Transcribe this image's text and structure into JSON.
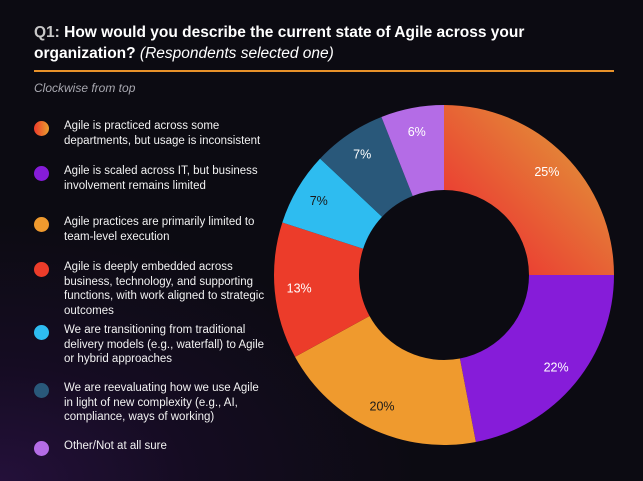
{
  "title": {
    "prefix": "Q1:",
    "text": " How would you describe the current state of Agile across your organization?",
    "subtitle": " (Respondents selected one)"
  },
  "note": "Clockwise from top",
  "chart_data": {
    "type": "pie",
    "donut": true,
    "order": "clockwise from top",
    "legend_position": "left",
    "slices": [
      {
        "label": "Agile is practiced across some departments, but usage is inconsistent",
        "value": 25,
        "display": "25%",
        "color": "#e8402a",
        "color2": "#e8a030",
        "label_color": "#ffffff"
      },
      {
        "label": "Agile is scaled across IT, but business involvement remains limited",
        "value": 22,
        "display": "22%",
        "color": "#861cd9",
        "label_color": "#ffffff"
      },
      {
        "label": "Agile practices are primarily limited to team-level execution",
        "value": 20,
        "display": "20%",
        "color": "#ef9a2e",
        "label_color": "#1a1a1a"
      },
      {
        "label": "Agile is deeply embedded across business, technology, and supporting functions, with work aligned to strategic outcomes",
        "value": 13,
        "display": "13%",
        "color": "#ec3c2a",
        "label_color": "#ffffff"
      },
      {
        "label": "We are transitioning from traditional delivery models (e.g., waterfall) to Agile or hybrid approaches",
        "value": 7,
        "display": "7%",
        "color": "#2ebcf0",
        "label_color": "#1a1a1a"
      },
      {
        "label": "We are reevaluating how we use Agile in light of new complexity (e.g., AI, compliance, ways of working)",
        "value": 7,
        "display": "7%",
        "color": "#29587a",
        "label_color": "#ffffff"
      },
      {
        "label": "Other/Not at all sure",
        "value": 6,
        "display": "6%",
        "color": "#b46ce6",
        "label_color": "#ffffff"
      }
    ]
  }
}
